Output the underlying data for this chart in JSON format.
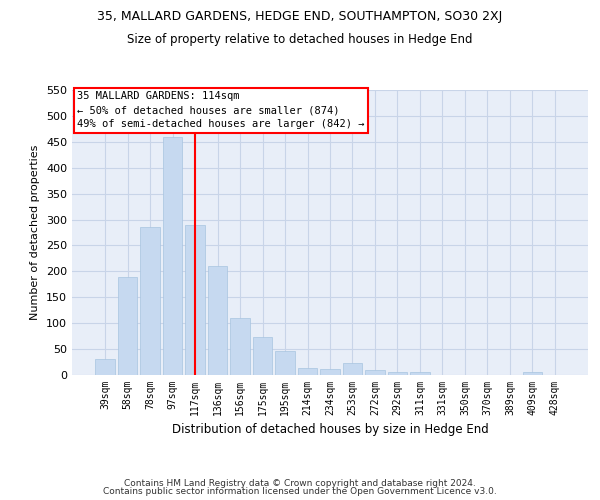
{
  "title": "35, MALLARD GARDENS, HEDGE END, SOUTHAMPTON, SO30 2XJ",
  "subtitle": "Size of property relative to detached houses in Hedge End",
  "xlabel": "Distribution of detached houses by size in Hedge End",
  "ylabel": "Number of detached properties",
  "bar_color": "#c6d9f0",
  "bar_edgecolor": "#a8c4e0",
  "vline_color": "red",
  "annotation_title": "35 MALLARD GARDENS: 114sqm",
  "annotation_line2": "← 50% of detached houses are smaller (874)",
  "annotation_line3": "49% of semi-detached houses are larger (842) →",
  "annotation_box_color": "red",
  "categories": [
    "39sqm",
    "58sqm",
    "78sqm",
    "97sqm",
    "117sqm",
    "136sqm",
    "156sqm",
    "175sqm",
    "195sqm",
    "214sqm",
    "234sqm",
    "253sqm",
    "272sqm",
    "292sqm",
    "311sqm",
    "331sqm",
    "350sqm",
    "370sqm",
    "389sqm",
    "409sqm",
    "428sqm"
  ],
  "values": [
    30,
    190,
    285,
    460,
    290,
    210,
    110,
    73,
    46,
    14,
    12,
    23,
    10,
    5,
    5,
    0,
    0,
    0,
    0,
    5,
    0
  ],
  "ylim": [
    0,
    550
  ],
  "yticks": [
    0,
    50,
    100,
    150,
    200,
    250,
    300,
    350,
    400,
    450,
    500,
    550
  ],
  "background_color": "#ffffff",
  "axes_background": "#e8eef8",
  "grid_color": "#c8d4e8",
  "footer_line1": "Contains HM Land Registry data © Crown copyright and database right 2024.",
  "footer_line2": "Contains public sector information licensed under the Open Government Licence v3.0."
}
